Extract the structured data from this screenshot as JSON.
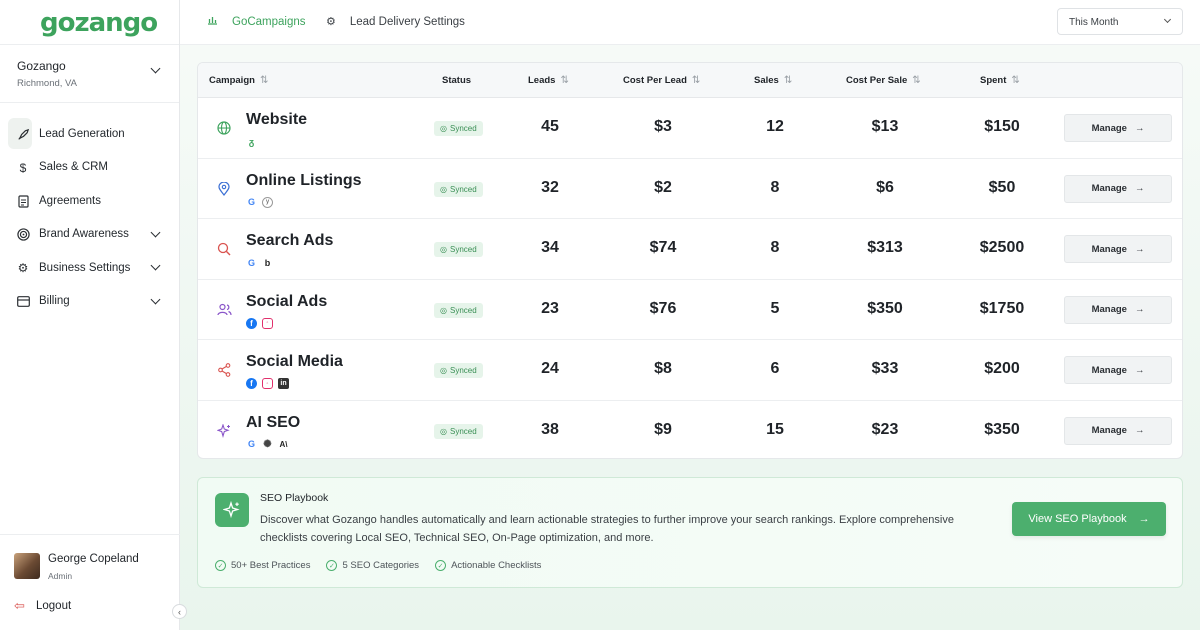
{
  "brand": {
    "logo_text": "gozango",
    "accent": "#3da35d"
  },
  "org": {
    "name": "Gozango",
    "location": "Richmond, VA"
  },
  "sidebar": {
    "items": [
      {
        "label": "Lead Generation",
        "icon": "rocket-icon",
        "active": true
      },
      {
        "label": "Sales & CRM",
        "icon": "dollar-icon"
      },
      {
        "label": "Agreements",
        "icon": "document-icon"
      },
      {
        "label": "Brand Awareness",
        "icon": "target-icon"
      },
      {
        "label": "Business Settings",
        "icon": "gear-icon"
      },
      {
        "label": "Billing",
        "icon": "credit-card-icon"
      }
    ]
  },
  "user": {
    "name": "George Copeland",
    "role": "Admin",
    "logout_label": "Logout"
  },
  "topbar": {
    "tab1": "GoCampaigns",
    "tab2": "Lead Delivery Settings",
    "period": "This Month"
  },
  "table": {
    "headers": [
      "Campaign",
      "Status",
      "Leads",
      "Cost Per Lead",
      "Sales",
      "Cost Per Sale",
      "Spent"
    ],
    "rows": [
      {
        "name": "Website",
        "status": "Synced",
        "leads": "45",
        "cpl": "$3",
        "sales": "12",
        "cps": "$13",
        "spent": "$150",
        "action": "Manage",
        "icon": "globe-icon",
        "platforms": [
          "gozango-icon"
        ]
      },
      {
        "name": "Online Listings",
        "status": "Synced",
        "leads": "32",
        "cpl": "$2",
        "sales": "8",
        "cps": "$6",
        "spent": "$50",
        "action": "Manage",
        "icon": "map-pin-icon",
        "platforms": [
          "google-icon",
          "yelp-icon"
        ]
      },
      {
        "name": "Search Ads",
        "status": "Synced",
        "leads": "34",
        "cpl": "$74",
        "sales": "8",
        "cps": "$313",
        "spent": "$2500",
        "action": "Manage",
        "icon": "search-icon",
        "platforms": [
          "google-icon",
          "bing-icon"
        ]
      },
      {
        "name": "Social Ads",
        "status": "Synced",
        "leads": "23",
        "cpl": "$76",
        "sales": "5",
        "cps": "$350",
        "spent": "$1750",
        "action": "Manage",
        "icon": "users-icon",
        "platforms": [
          "facebook-icon",
          "instagram-icon"
        ]
      },
      {
        "name": "Social Media",
        "status": "Synced",
        "leads": "24",
        "cpl": "$8",
        "sales": "6",
        "cps": "$33",
        "spent": "$200",
        "action": "Manage",
        "icon": "share-icon",
        "platforms": [
          "facebook-icon",
          "instagram-icon",
          "linkedin-icon"
        ]
      },
      {
        "name": "AI SEO",
        "status": "Synced",
        "leads": "38",
        "cpl": "$9",
        "sales": "15",
        "cps": "$23",
        "spent": "$350",
        "action": "Manage",
        "icon": "sparkle-icon",
        "platforms": [
          "google-icon",
          "openai-icon",
          "anthropic-icon"
        ]
      }
    ]
  },
  "seo": {
    "title": "SEO Playbook",
    "description": "Discover what Gozango handles automatically and learn actionable strategies to further improve your search rankings. Explore comprehensive checklists covering Local SEO, Technical SEO, On-Page optimization, and more.",
    "button": "View SEO Playbook",
    "checks": [
      "50+ Best Practices",
      "5 SEO Categories",
      "Actionable Checklists"
    ]
  }
}
